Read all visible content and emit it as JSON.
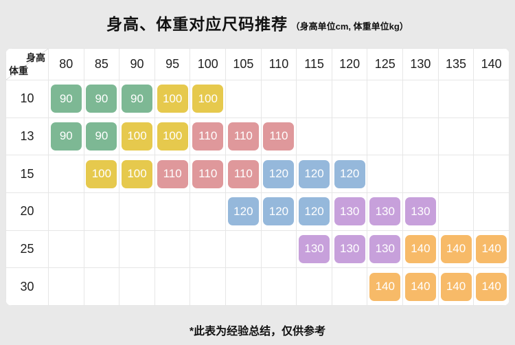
{
  "title": {
    "main": "身高、体重对应尺码推荐",
    "sub": "（身高单位cm, 体重单位kg）"
  },
  "footer": "*此表为经验总结，仅供参考",
  "chart_data": {
    "type": "table",
    "title": "身高、体重对应尺码推荐",
    "unit_note": "身高单位cm, 体重单位kg",
    "corner": {
      "column_axis": "身高",
      "row_axis": "体重"
    },
    "height_columns": [
      "80",
      "85",
      "90",
      "95",
      "100",
      "105",
      "110",
      "115",
      "120",
      "125",
      "130",
      "135",
      "140"
    ],
    "weight_rows": [
      "10",
      "13",
      "15",
      "20",
      "25",
      "30"
    ],
    "cells": [
      [
        "90",
        "90",
        "90",
        "100",
        "100",
        "",
        "",
        "",
        "",
        "",
        "",
        "",
        ""
      ],
      [
        "90",
        "90",
        "100",
        "100",
        "110",
        "110",
        "110",
        "",
        "",
        "",
        "",
        "",
        ""
      ],
      [
        "",
        "100",
        "100",
        "110",
        "110",
        "110",
        "120",
        "120",
        "120",
        "",
        "",
        "",
        ""
      ],
      [
        "",
        "",
        "",
        "",
        "",
        "120",
        "120",
        "120",
        "130",
        "130",
        "130",
        "",
        ""
      ],
      [
        "",
        "",
        "",
        "",
        "",
        "",
        "",
        "130",
        "130",
        "130",
        "140",
        "140",
        "140"
      ],
      [
        "",
        "",
        "",
        "",
        "",
        "",
        "",
        "",
        "",
        "140",
        "140",
        "140",
        "140"
      ]
    ],
    "size_colors": {
      "90": "#7db894",
      "100": "#e6c94d",
      "110": "#df989b",
      "120": "#95b8db",
      "130": "#c7a0db",
      "140": "#f7ba68"
    },
    "grid_color": "#e6e6e6",
    "card_background": "#ffffff",
    "page_background": "#e9e9e9"
  }
}
